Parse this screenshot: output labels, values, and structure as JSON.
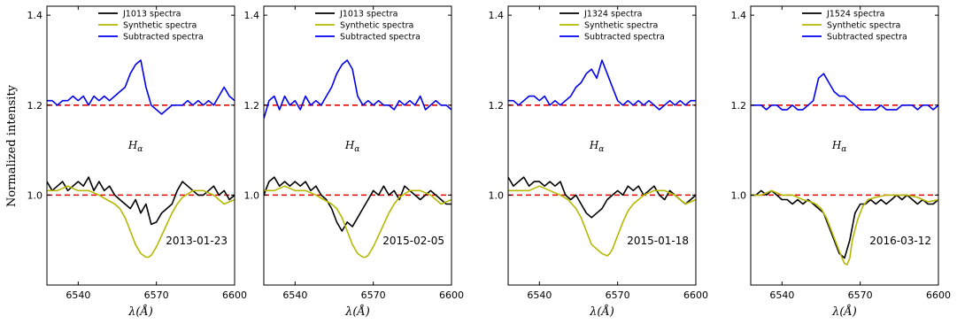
{
  "figure": {
    "ylabel": "Normalized intensity",
    "line_label": "H",
    "line_label_sub": "α"
  },
  "colors": {
    "observed": "#000000",
    "synthetic": "#b5b800",
    "subtracted": "#0000ee",
    "reference": "#e60000"
  },
  "chart_data": [
    {
      "type": "line",
      "xlabel": "λ(Å)",
      "xlim": [
        6528,
        6600
      ],
      "ylim": [
        0.8,
        1.42
      ],
      "xticks": [
        6540,
        6570,
        6600
      ],
      "yticks": [
        1.0,
        1.2,
        1.4
      ],
      "ytick_labels": [
        "1.0",
        "1.2",
        "1.4"
      ],
      "reference_lines": [
        1.0,
        1.2
      ],
      "date": "2013-01-23",
      "legend": "top-right",
      "series": [
        {
          "name": "J1013 spectra",
          "role": "observed",
          "x": [
            6528,
            6530,
            6532,
            6534,
            6536,
            6538,
            6540,
            6542,
            6544,
            6546,
            6548,
            6550,
            6552,
            6554,
            6556,
            6558,
            6560,
            6562,
            6564,
            6566,
            6568,
            6570,
            6572,
            6574,
            6576,
            6578,
            6580,
            6582,
            6584,
            6586,
            6588,
            6590,
            6592,
            6594,
            6596,
            6598,
            6600
          ],
          "y": [
            1.03,
            1.01,
            1.02,
            1.03,
            1.01,
            1.02,
            1.03,
            1.02,
            1.04,
            1.01,
            1.03,
            1.01,
            1.02,
            1.0,
            0.99,
            0.98,
            0.97,
            0.99,
            0.96,
            0.98,
            0.935,
            0.94,
            0.96,
            0.97,
            0.98,
            1.01,
            1.03,
            1.02,
            1.01,
            1.0,
            1.0,
            1.01,
            1.02,
            1.0,
            1.01,
            0.99,
            1.0
          ]
        },
        {
          "name": "Synthetic spectra",
          "role": "synthetic",
          "x": [
            6528,
            6532,
            6536,
            6540,
            6544,
            6548,
            6551,
            6554,
            6556,
            6558,
            6560,
            6562,
            6564,
            6566,
            6567,
            6568,
            6570,
            6572,
            6574,
            6576,
            6578,
            6580,
            6584,
            6588,
            6592,
            6596,
            6600
          ],
          "y": [
            1.01,
            1.01,
            1.02,
            1.01,
            1.01,
            1.0,
            0.99,
            0.98,
            0.97,
            0.95,
            0.92,
            0.89,
            0.87,
            0.862,
            0.862,
            0.866,
            0.885,
            0.91,
            0.935,
            0.96,
            0.98,
            0.995,
            1.01,
            1.01,
            1.0,
            0.98,
            0.99
          ]
        },
        {
          "name": "Subtracted spectra",
          "role": "subtracted",
          "x": [
            6528,
            6530,
            6532,
            6534,
            6536,
            6538,
            6540,
            6542,
            6544,
            6546,
            6548,
            6550,
            6552,
            6554,
            6556,
            6558,
            6560,
            6562,
            6564,
            6566,
            6568,
            6570,
            6572,
            6574,
            6576,
            6578,
            6580,
            6582,
            6584,
            6586,
            6588,
            6590,
            6592,
            6594,
            6596,
            6598,
            6600
          ],
          "y": [
            1.21,
            1.21,
            1.2,
            1.21,
            1.21,
            1.22,
            1.21,
            1.22,
            1.2,
            1.22,
            1.21,
            1.22,
            1.21,
            1.22,
            1.23,
            1.24,
            1.27,
            1.29,
            1.3,
            1.24,
            1.2,
            1.19,
            1.18,
            1.19,
            1.2,
            1.2,
            1.2,
            1.21,
            1.2,
            1.21,
            1.2,
            1.21,
            1.2,
            1.22,
            1.24,
            1.22,
            1.21
          ]
        }
      ]
    },
    {
      "type": "line",
      "xlabel": "λ(Å)",
      "xlim": [
        6528,
        6600
      ],
      "ylim": [
        0.8,
        1.42
      ],
      "xticks": [
        6540,
        6570,
        6600
      ],
      "yticks": [
        1.0,
        1.2,
        1.4
      ],
      "ytick_labels": [
        "1.0",
        "1.2",
        "1.4"
      ],
      "reference_lines": [
        1.0,
        1.2
      ],
      "date": "2015-02-05",
      "legend": "top-right",
      "series": [
        {
          "name": "J1013 spectra",
          "role": "observed",
          "x": [
            6528,
            6530,
            6532,
            6534,
            6536,
            6538,
            6540,
            6542,
            6544,
            6546,
            6548,
            6550,
            6552,
            6554,
            6556,
            6558,
            6560,
            6562,
            6564,
            6566,
            6568,
            6570,
            6572,
            6574,
            6576,
            6578,
            6580,
            6582,
            6584,
            6586,
            6588,
            6590,
            6592,
            6594,
            6596,
            6598,
            6600
          ],
          "y": [
            1.0,
            1.03,
            1.04,
            1.02,
            1.03,
            1.02,
            1.03,
            1.02,
            1.03,
            1.01,
            1.02,
            1.0,
            0.99,
            0.97,
            0.94,
            0.92,
            0.94,
            0.93,
            0.95,
            0.97,
            0.99,
            1.01,
            1.0,
            1.02,
            1.0,
            1.01,
            0.99,
            1.02,
            1.01,
            1.0,
            0.99,
            1.0,
            1.01,
            1.0,
            0.99,
            0.98,
            0.98
          ]
        },
        {
          "name": "Synthetic spectra",
          "role": "synthetic",
          "x": [
            6528,
            6532,
            6536,
            6540,
            6544,
            6548,
            6551,
            6554,
            6556,
            6558,
            6560,
            6562,
            6564,
            6566,
            6567,
            6568,
            6570,
            6572,
            6574,
            6576,
            6578,
            6580,
            6584,
            6588,
            6592,
            6596,
            6600
          ],
          "y": [
            1.01,
            1.01,
            1.02,
            1.01,
            1.01,
            1.0,
            0.99,
            0.98,
            0.97,
            0.95,
            0.92,
            0.89,
            0.87,
            0.862,
            0.862,
            0.866,
            0.885,
            0.91,
            0.935,
            0.96,
            0.98,
            0.995,
            1.01,
            1.01,
            1.0,
            0.98,
            0.99
          ]
        },
        {
          "name": "Subtracted spectra",
          "role": "subtracted",
          "x": [
            6528,
            6530,
            6532,
            6534,
            6536,
            6538,
            6540,
            6542,
            6544,
            6546,
            6548,
            6550,
            6552,
            6554,
            6556,
            6558,
            6560,
            6562,
            6564,
            6566,
            6568,
            6570,
            6572,
            6574,
            6576,
            6578,
            6580,
            6582,
            6584,
            6586,
            6588,
            6590,
            6592,
            6594,
            6596,
            6598,
            6600
          ],
          "y": [
            1.17,
            1.21,
            1.22,
            1.19,
            1.22,
            1.2,
            1.21,
            1.19,
            1.22,
            1.2,
            1.21,
            1.2,
            1.22,
            1.24,
            1.27,
            1.29,
            1.3,
            1.28,
            1.22,
            1.2,
            1.21,
            1.2,
            1.21,
            1.2,
            1.2,
            1.19,
            1.21,
            1.2,
            1.21,
            1.2,
            1.22,
            1.19,
            1.2,
            1.21,
            1.2,
            1.2,
            1.19
          ]
        }
      ]
    },
    {
      "type": "line",
      "xlabel": "λ(Å)",
      "xlim": [
        6528,
        6600
      ],
      "ylim": [
        0.8,
        1.42
      ],
      "xticks": [
        6540,
        6570,
        6600
      ],
      "yticks": [
        1.0,
        1.2,
        1.4
      ],
      "ytick_labels": [
        "1.0",
        "1.2",
        "1.4"
      ],
      "reference_lines": [
        1.0,
        1.2
      ],
      "date": "2015-01-18",
      "legend": "top-right",
      "series": [
        {
          "name": "J1324 spectra",
          "role": "observed",
          "x": [
            6528,
            6530,
            6532,
            6534,
            6536,
            6538,
            6540,
            6542,
            6544,
            6546,
            6548,
            6550,
            6552,
            6554,
            6556,
            6558,
            6560,
            6562,
            6564,
            6566,
            6568,
            6570,
            6572,
            6574,
            6576,
            6578,
            6580,
            6582,
            6584,
            6586,
            6588,
            6590,
            6592,
            6594,
            6596,
            6598,
            6600
          ],
          "y": [
            1.04,
            1.02,
            1.03,
            1.04,
            1.02,
            1.03,
            1.03,
            1.02,
            1.03,
            1.02,
            1.03,
            1.0,
            0.99,
            1.0,
            0.98,
            0.96,
            0.95,
            0.96,
            0.97,
            0.99,
            1.0,
            1.01,
            1.0,
            1.02,
            1.01,
            1.02,
            1.0,
            1.01,
            1.02,
            1.0,
            0.99,
            1.01,
            1.0,
            0.99,
            0.98,
            0.99,
            1.0
          ]
        },
        {
          "name": "Synthetic spectra",
          "role": "synthetic",
          "x": [
            6528,
            6532,
            6536,
            6540,
            6544,
            6548,
            6551,
            6554,
            6556,
            6558,
            6560,
            6562,
            6564,
            6566,
            6567,
            6568,
            6570,
            6572,
            6574,
            6576,
            6578,
            6580,
            6584,
            6588,
            6592,
            6596,
            6600
          ],
          "y": [
            1.01,
            1.01,
            1.01,
            1.02,
            1.01,
            1.0,
            0.99,
            0.97,
            0.95,
            0.92,
            0.89,
            0.88,
            0.87,
            0.865,
            0.87,
            0.88,
            0.91,
            0.94,
            0.965,
            0.98,
            0.99,
            1.0,
            1.01,
            1.01,
            1.0,
            0.98,
            0.99
          ]
        },
        {
          "name": "Subtracted spectra",
          "role": "subtracted",
          "x": [
            6528,
            6530,
            6532,
            6534,
            6536,
            6538,
            6540,
            6542,
            6544,
            6546,
            6548,
            6550,
            6552,
            6554,
            6556,
            6558,
            6560,
            6562,
            6564,
            6566,
            6568,
            6570,
            6572,
            6574,
            6576,
            6578,
            6580,
            6582,
            6584,
            6586,
            6588,
            6590,
            6592,
            6594,
            6596,
            6598,
            6600
          ],
          "y": [
            1.21,
            1.21,
            1.2,
            1.21,
            1.22,
            1.22,
            1.21,
            1.22,
            1.2,
            1.21,
            1.2,
            1.21,
            1.22,
            1.24,
            1.25,
            1.27,
            1.28,
            1.26,
            1.3,
            1.27,
            1.24,
            1.21,
            1.2,
            1.21,
            1.2,
            1.21,
            1.2,
            1.21,
            1.2,
            1.19,
            1.2,
            1.21,
            1.2,
            1.21,
            1.2,
            1.21,
            1.21
          ]
        }
      ]
    },
    {
      "type": "line",
      "xlabel": "λ(Å)",
      "xlim": [
        6528,
        6600
      ],
      "ylim": [
        0.8,
        1.42
      ],
      "xticks": [
        6540,
        6570,
        6600
      ],
      "yticks": [
        1.0,
        1.2,
        1.4
      ],
      "ytick_labels": [
        "1.0",
        "1.2",
        "1.4"
      ],
      "reference_lines": [
        1.0,
        1.2
      ],
      "date": "2016-03-12",
      "legend": "top-right",
      "series": [
        {
          "name": "J1524 spectra",
          "role": "observed",
          "x": [
            6528,
            6530,
            6532,
            6534,
            6536,
            6538,
            6540,
            6542,
            6544,
            6546,
            6548,
            6550,
            6552,
            6554,
            6556,
            6558,
            6560,
            6562,
            6564,
            6566,
            6568,
            6570,
            6572,
            6574,
            6576,
            6578,
            6580,
            6582,
            6584,
            6586,
            6588,
            6590,
            6592,
            6594,
            6596,
            6598,
            6600
          ],
          "y": [
            1.0,
            1.0,
            1.01,
            1.0,
            1.01,
            1.0,
            0.99,
            0.99,
            0.98,
            0.99,
            0.98,
            0.99,
            0.98,
            0.97,
            0.96,
            0.93,
            0.9,
            0.87,
            0.86,
            0.9,
            0.96,
            0.98,
            0.98,
            0.99,
            0.98,
            0.99,
            0.98,
            0.99,
            1.0,
            0.99,
            1.0,
            0.99,
            0.98,
            0.99,
            0.98,
            0.98,
            0.99
          ]
        },
        {
          "name": "Synthetic spectra",
          "role": "synthetic",
          "x": [
            6528,
            6532,
            6536,
            6540,
            6544,
            6548,
            6551,
            6553,
            6555,
            6557,
            6559,
            6561,
            6563,
            6564,
            6565,
            6566,
            6567,
            6569,
            6571,
            6573,
            6576,
            6580,
            6584,
            6588,
            6592,
            6596,
            6600
          ],
          "y": [
            1.0,
            1.0,
            1.01,
            1.0,
            1.0,
            0.99,
            0.985,
            0.98,
            0.97,
            0.95,
            0.92,
            0.89,
            0.86,
            0.848,
            0.845,
            0.86,
            0.9,
            0.945,
            0.975,
            0.99,
            0.995,
            1.0,
            1.0,
            1.0,
            0.995,
            0.985,
            0.99
          ]
        },
        {
          "name": "Subtracted spectra",
          "role": "subtracted",
          "x": [
            6528,
            6530,
            6532,
            6534,
            6536,
            6538,
            6540,
            6542,
            6544,
            6546,
            6548,
            6550,
            6552,
            6554,
            6556,
            6558,
            6560,
            6562,
            6564,
            6566,
            6568,
            6570,
            6572,
            6574,
            6576,
            6578,
            6580,
            6582,
            6584,
            6586,
            6588,
            6590,
            6592,
            6594,
            6596,
            6598,
            6600
          ],
          "y": [
            1.2,
            1.2,
            1.2,
            1.19,
            1.2,
            1.2,
            1.19,
            1.19,
            1.2,
            1.19,
            1.19,
            1.2,
            1.21,
            1.26,
            1.27,
            1.25,
            1.23,
            1.22,
            1.22,
            1.21,
            1.2,
            1.19,
            1.19,
            1.19,
            1.19,
            1.2,
            1.19,
            1.19,
            1.19,
            1.2,
            1.2,
            1.2,
            1.19,
            1.2,
            1.2,
            1.19,
            1.2
          ]
        }
      ]
    }
  ]
}
